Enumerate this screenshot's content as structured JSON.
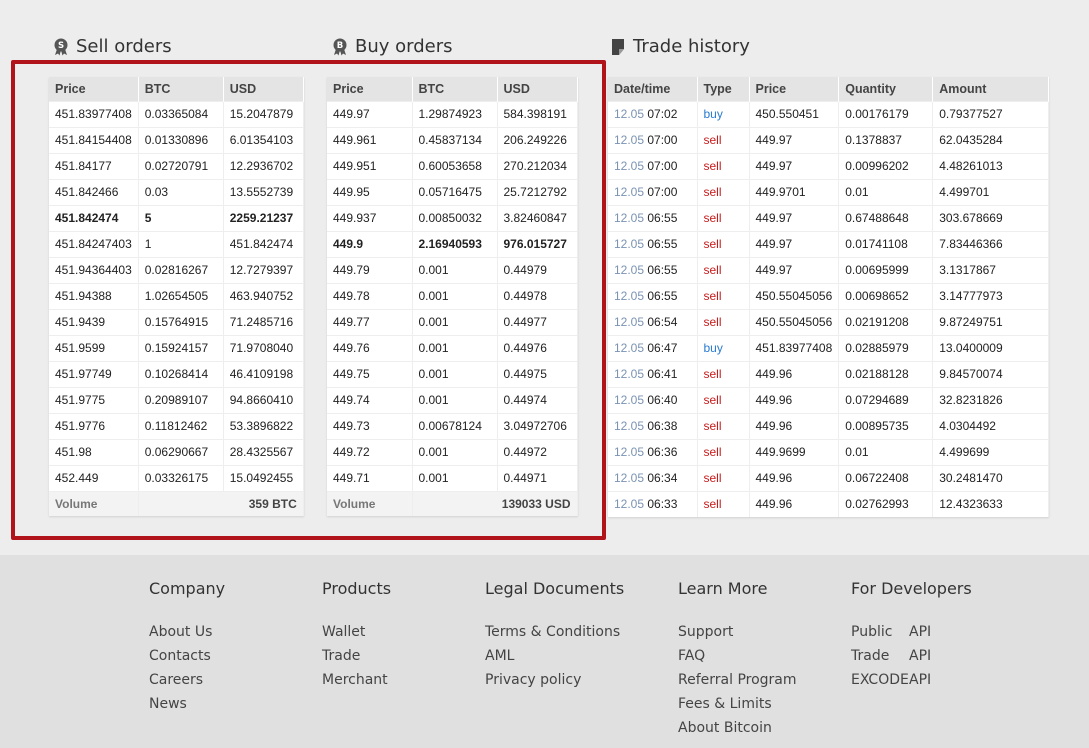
{
  "sell": {
    "title": "Sell orders",
    "headers": [
      "Price",
      "BTC",
      "USD"
    ],
    "rows": [
      [
        "451.83977408",
        "0.03365084",
        "15.2047879"
      ],
      [
        "451.84154408",
        "0.01330896",
        "6.01354103"
      ],
      [
        "451.84177",
        "0.02720791",
        "12.2936702"
      ],
      [
        "451.842466",
        "0.03",
        "13.5552739"
      ],
      [
        "451.842474",
        "5",
        "2259.21237"
      ],
      [
        "451.84247403",
        "1",
        "451.842474"
      ],
      [
        "451.94364403",
        "0.02816267",
        "12.7279397"
      ],
      [
        "451.94388",
        "1.02654505",
        "463.940752"
      ],
      [
        "451.9439",
        "0.15764915",
        "71.2485716"
      ],
      [
        "451.9599",
        "0.15924157",
        "71.9708040"
      ],
      [
        "451.97749",
        "0.10268414",
        "46.4109198"
      ],
      [
        "451.9775",
        "0.20989107",
        "94.8660410"
      ],
      [
        "451.9776",
        "0.11812462",
        "53.3896822"
      ],
      [
        "451.98",
        "0.06290667",
        "28.4325567"
      ],
      [
        "452.449",
        "0.03326175",
        "15.0492455"
      ]
    ],
    "volume_label": "Volume",
    "volume_value": "359 BTC"
  },
  "buy": {
    "title": "Buy orders",
    "headers": [
      "Price",
      "BTC",
      "USD"
    ],
    "rows": [
      [
        "449.97",
        "1.29874923",
        "584.398191"
      ],
      [
        "449.961",
        "0.45837134",
        "206.249226"
      ],
      [
        "449.951",
        "0.60053658",
        "270.212034"
      ],
      [
        "449.95",
        "0.05716475",
        "25.7212792"
      ],
      [
        "449.937",
        "0.00850032",
        "3.82460847"
      ],
      [
        "449.9",
        "2.16940593",
        "976.015727"
      ],
      [
        "449.79",
        "0.001",
        "0.44979"
      ],
      [
        "449.78",
        "0.001",
        "0.44978"
      ],
      [
        "449.77",
        "0.001",
        "0.44977"
      ],
      [
        "449.76",
        "0.001",
        "0.44976"
      ],
      [
        "449.75",
        "0.001",
        "0.44975"
      ],
      [
        "449.74",
        "0.001",
        "0.44974"
      ],
      [
        "449.73",
        "0.00678124",
        "3.04972706"
      ],
      [
        "449.72",
        "0.001",
        "0.44972"
      ],
      [
        "449.71",
        "0.001",
        "0.44971"
      ]
    ],
    "volume_label": "Volume",
    "volume_value": "139033 USD"
  },
  "history": {
    "title": "Trade history",
    "headers": [
      "Date/time",
      "Type",
      "Price",
      "Quantity",
      "Amount"
    ],
    "rows": [
      [
        "12.05",
        "07:02",
        "buy",
        "450.550451",
        "0.00176179",
        "0.79377527"
      ],
      [
        "12.05",
        "07:00",
        "sell",
        "449.97",
        "0.1378837",
        "62.0435284"
      ],
      [
        "12.05",
        "07:00",
        "sell",
        "449.97",
        "0.00996202",
        "4.48261013"
      ],
      [
        "12.05",
        "07:00",
        "sell",
        "449.9701",
        "0.01",
        "4.499701"
      ],
      [
        "12.05",
        "06:55",
        "sell",
        "449.97",
        "0.67488648",
        "303.678669"
      ],
      [
        "12.05",
        "06:55",
        "sell",
        "449.97",
        "0.01741108",
        "7.83446366"
      ],
      [
        "12.05",
        "06:55",
        "sell",
        "449.97",
        "0.00695999",
        "3.1317867"
      ],
      [
        "12.05",
        "06:55",
        "sell",
        "450.55045056",
        "0.00698652",
        "3.14777973"
      ],
      [
        "12.05",
        "06:54",
        "sell",
        "450.55045056",
        "0.02191208",
        "9.87249751"
      ],
      [
        "12.05",
        "06:47",
        "buy",
        "451.83977408",
        "0.02885979",
        "13.0400009"
      ],
      [
        "12.05",
        "06:41",
        "sell",
        "449.96",
        "0.02188128",
        "9.84570074"
      ],
      [
        "12.05",
        "06:40",
        "sell",
        "449.96",
        "0.07294689",
        "32.8231826"
      ],
      [
        "12.05",
        "06:38",
        "sell",
        "449.96",
        "0.00895735",
        "4.0304492"
      ],
      [
        "12.05",
        "06:36",
        "sell",
        "449.9699",
        "0.01",
        "4.499699"
      ],
      [
        "12.05",
        "06:34",
        "sell",
        "449.96",
        "0.06722408",
        "30.2481470"
      ],
      [
        "12.05",
        "06:33",
        "sell",
        "449.96",
        "0.02762993",
        "12.4323633"
      ]
    ]
  },
  "footer": {
    "company": {
      "title": "Company",
      "links": [
        "About Us",
        "Contacts",
        "Careers",
        "News"
      ]
    },
    "products": {
      "title": "Products",
      "links": [
        "Wallet",
        "Trade",
        "Merchant"
      ]
    },
    "legal": {
      "title": "Legal Documents",
      "links": [
        "Terms & Conditions",
        "AML",
        "Privacy policy"
      ]
    },
    "learn": {
      "title": "Learn More",
      "links": [
        "Support",
        "FAQ",
        "Referral Program",
        "Fees & Limits",
        "About Bitcoin"
      ]
    },
    "developers": {
      "title": "For Developers",
      "rows": [
        [
          "Public",
          "API"
        ],
        [
          "Trade",
          "API"
        ],
        [
          "EXCODE",
          "API"
        ]
      ]
    }
  },
  "colors": {
    "buy": "#2a7bd0",
    "sell": "#c91a1a",
    "highlight_border": "#b0141a",
    "date": "#7a93b3"
  }
}
